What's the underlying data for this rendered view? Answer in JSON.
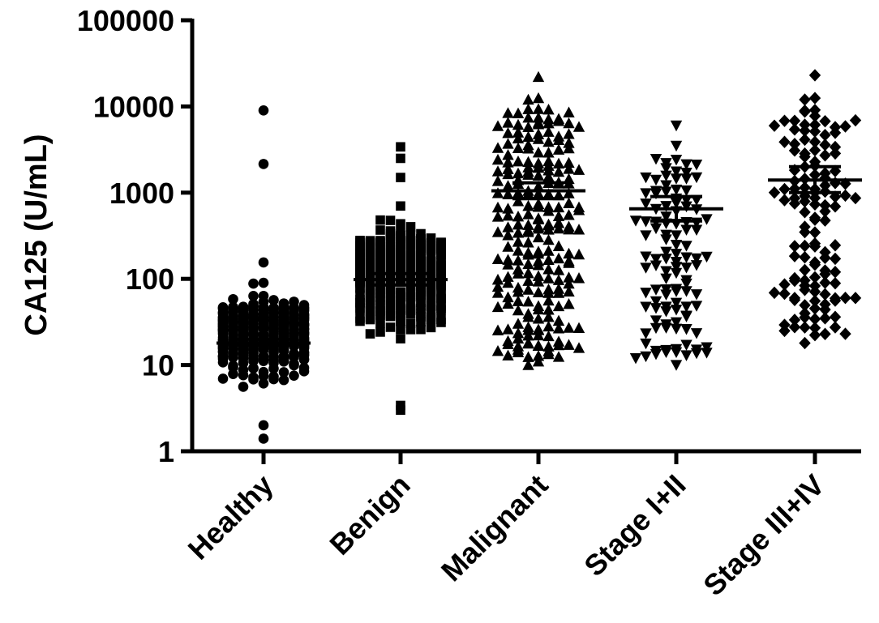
{
  "chart_data": {
    "type": "scatter",
    "ylabel": "CA125 (U/mL)",
    "yscale": "log",
    "ylim": [
      1,
      100000
    ],
    "yticks": [
      1,
      10,
      100,
      1000,
      10000,
      100000
    ],
    "ytick_labels": [
      "1",
      "10",
      "100",
      "1000",
      "10000",
      "100000"
    ],
    "categories": [
      "Healthy",
      "Benign",
      "Malignant",
      "Stage I+II",
      "Stage III+IV"
    ],
    "grid": false,
    "series": [
      {
        "category": "Healthy",
        "marker": "circle",
        "n": 430,
        "central_value": 18,
        "error_low": 17,
        "error_high": 20,
        "range_min": 1.4,
        "range_max": 9000,
        "notable_points": [
          9000,
          2150,
          155,
          90,
          88,
          2.0,
          1.4
        ]
      },
      {
        "category": "Benign",
        "marker": "square",
        "n": 380,
        "central_value": 98,
        "error_low": 85,
        "error_high": 115,
        "range_min": 3.0,
        "range_max": 3400,
        "notable_points": [
          3400,
          2500,
          1500,
          700,
          3.0,
          3.4
        ]
      },
      {
        "category": "Malignant",
        "marker": "triangle-up",
        "n": 230,
        "central_value": 1050,
        "error_low": 850,
        "error_high": 1300,
        "range_min": 10,
        "range_max": 22000,
        "notable_points": [
          22000,
          12500,
          12000,
          11,
          10
        ]
      },
      {
        "category": "Stage I+II",
        "marker": "triangle-down",
        "n": 110,
        "central_value": 650,
        "error_low": 470,
        "error_high": 900,
        "range_min": 10,
        "range_max": 6000,
        "notable_points": [
          6000,
          3500,
          12,
          10
        ]
      },
      {
        "category": "Stage III+IV",
        "marker": "diamond",
        "n": 125,
        "central_value": 1400,
        "error_low": 1000,
        "error_high": 2000,
        "range_min": 18,
        "range_max": 23000,
        "notable_points": [
          23000,
          12500,
          12000,
          23,
          18
        ]
      }
    ]
  }
}
